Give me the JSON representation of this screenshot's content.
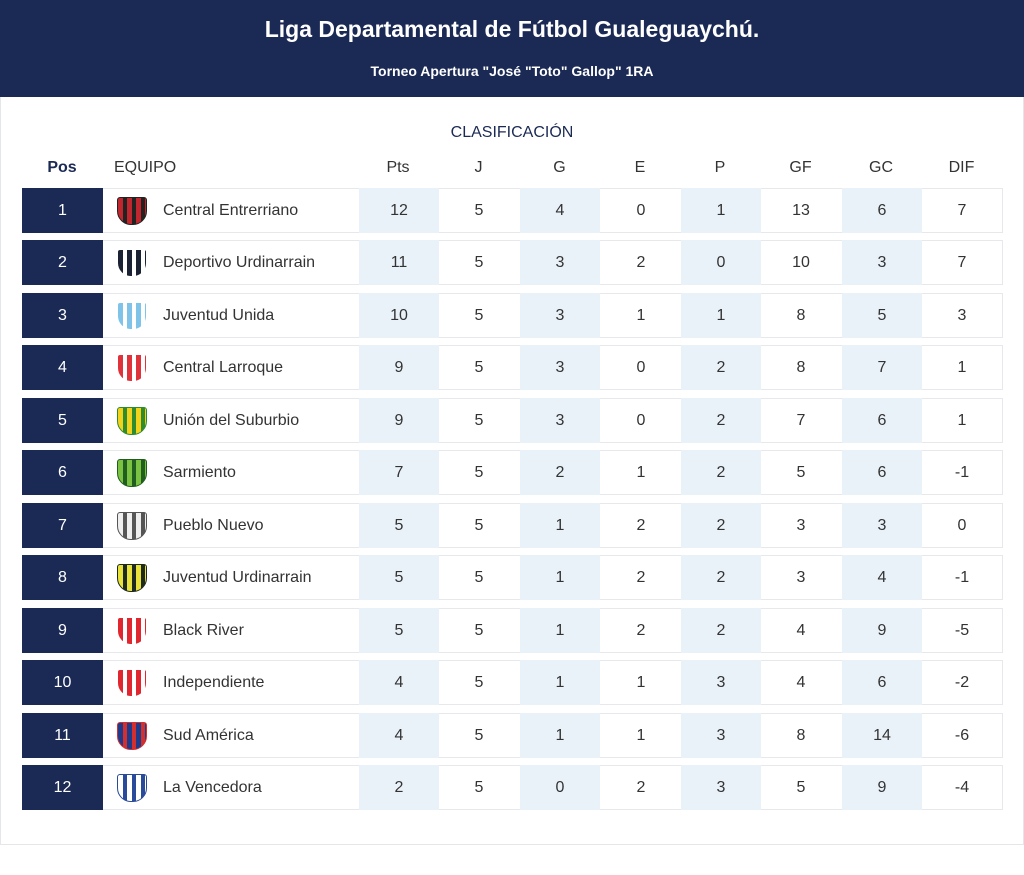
{
  "header": {
    "title": "Liga Departamental de Fútbol Gualeguaychú.",
    "subtitle": "Torneo Apertura \"José \"Toto\" Gallop\" 1RA"
  },
  "section_title": "CLASIFICACIÓN",
  "columns": [
    "Pos",
    "EQUIPO",
    "Pts",
    "J",
    "G",
    "E",
    "P",
    "GF",
    "GC",
    "DIF"
  ],
  "colors": {
    "primary": "#1b2a55",
    "shade": "#eaf2f9"
  },
  "rows": [
    {
      "pos": "1",
      "team": "Central Entrerriano",
      "crest": [
        "#c0262d",
        "#222"
      ],
      "stats": [
        "12",
        "5",
        "4",
        "0",
        "1",
        "13",
        "6",
        "7"
      ]
    },
    {
      "pos": "2",
      "team": "Deportivo Urdinarrain",
      "crest": [
        "#1b2233",
        "#ffffff"
      ],
      "stats": [
        "11",
        "5",
        "3",
        "2",
        "0",
        "10",
        "3",
        "7"
      ]
    },
    {
      "pos": "3",
      "team": "Juventud Unida",
      "crest": [
        "#7fc4e8",
        "#ffffff"
      ],
      "stats": [
        "10",
        "5",
        "3",
        "1",
        "1",
        "8",
        "5",
        "3"
      ]
    },
    {
      "pos": "4",
      "team": "Central Larroque",
      "crest": [
        "#e0323a",
        "#ffffff"
      ],
      "stats": [
        "9",
        "5",
        "3",
        "0",
        "2",
        "8",
        "7",
        "1"
      ]
    },
    {
      "pos": "5",
      "team": "Unión del Suburbio",
      "crest": [
        "#f2d21b",
        "#2e8b2e"
      ],
      "stats": [
        "9",
        "5",
        "3",
        "0",
        "2",
        "7",
        "6",
        "1"
      ]
    },
    {
      "pos": "6",
      "team": "Sarmiento",
      "crest": [
        "#7cc242",
        "#1f5e1f"
      ],
      "stats": [
        "7",
        "5",
        "2",
        "1",
        "2",
        "5",
        "6",
        "-1"
      ]
    },
    {
      "pos": "7",
      "team": "Pueblo Nuevo",
      "crest": [
        "#eeeeee",
        "#555555"
      ],
      "stats": [
        "5",
        "5",
        "1",
        "2",
        "2",
        "3",
        "3",
        "0"
      ]
    },
    {
      "pos": "8",
      "team": "Juventud Urdinarrain",
      "crest": [
        "#e8e23a",
        "#1e2a20"
      ],
      "stats": [
        "5",
        "5",
        "1",
        "2",
        "2",
        "3",
        "4",
        "-1"
      ]
    },
    {
      "pos": "9",
      "team": "Black River",
      "crest": [
        "#e0262e",
        "#ffffff"
      ],
      "stats": [
        "5",
        "5",
        "1",
        "2",
        "2",
        "4",
        "9",
        "-5"
      ]
    },
    {
      "pos": "10",
      "team": "Independiente",
      "crest": [
        "#e0262e",
        "#ffffff"
      ],
      "stats": [
        "4",
        "5",
        "1",
        "1",
        "3",
        "4",
        "6",
        "-2"
      ]
    },
    {
      "pos": "11",
      "team": "Sud América",
      "crest": [
        "#1e3a8a",
        "#d32f2f"
      ],
      "stats": [
        "4",
        "5",
        "1",
        "1",
        "3",
        "8",
        "14",
        "-6"
      ]
    },
    {
      "pos": "12",
      "team": "La Vencedora",
      "crest": [
        "#ffffff",
        "#2a4a9a"
      ],
      "stats": [
        "2",
        "5",
        "0",
        "2",
        "3",
        "5",
        "9",
        "-4"
      ]
    }
  ]
}
